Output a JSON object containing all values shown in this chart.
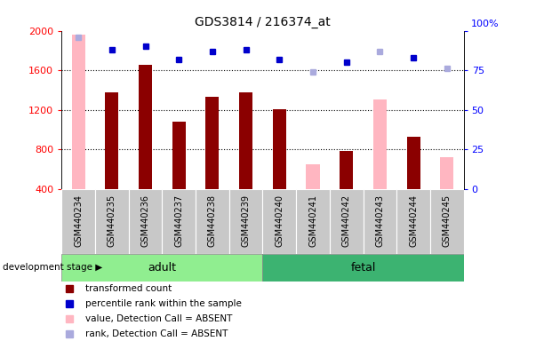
{
  "title": "GDS3814 / 216374_at",
  "categories": [
    "GSM440234",
    "GSM440235",
    "GSM440236",
    "GSM440237",
    "GSM440238",
    "GSM440239",
    "GSM440240",
    "GSM440241",
    "GSM440242",
    "GSM440243",
    "GSM440244",
    "GSM440245"
  ],
  "bar_values": [
    null,
    1380,
    1660,
    1080,
    1330,
    1380,
    1210,
    null,
    790,
    null,
    930,
    null
  ],
  "bar_absent_values": [
    1960,
    null,
    null,
    null,
    null,
    null,
    null,
    650,
    null,
    1310,
    null,
    720
  ],
  "rank_values": [
    null,
    88,
    90,
    82,
    87,
    88,
    82,
    null,
    80,
    null,
    83,
    null
  ],
  "rank_absent_values": [
    96,
    null,
    null,
    null,
    null,
    null,
    null,
    74,
    null,
    87,
    null,
    76
  ],
  "bar_color": "#8B0000",
  "bar_absent_color": "#FFB6C1",
  "rank_color": "#0000CC",
  "rank_absent_color": "#AAAADD",
  "ylim_left": [
    400,
    2000
  ],
  "ylim_right": [
    0,
    100
  ],
  "yticks_left": [
    400,
    800,
    1200,
    1600,
    2000
  ],
  "yticks_right": [
    0,
    25,
    50,
    75,
    100
  ],
  "grid_lines": [
    800,
    1200,
    1600
  ],
  "adult_count": 6,
  "fetal_count": 6,
  "adult_label": "adult",
  "fetal_label": "fetal",
  "dev_stage_label": "development stage",
  "legend_items": [
    {
      "label": "transformed count",
      "color": "#8B0000",
      "marker": "s"
    },
    {
      "label": "percentile rank within the sample",
      "color": "#0000CC",
      "marker": "s"
    },
    {
      "label": "value, Detection Call = ABSENT",
      "color": "#FFB6C1",
      "marker": "s"
    },
    {
      "label": "rank, Detection Call = ABSENT",
      "color": "#AAAADD",
      "marker": "s"
    }
  ],
  "bar_width": 0.4,
  "fig_width": 6.03,
  "fig_height": 3.84,
  "dpi": 100,
  "adult_color": "#90EE90",
  "fetal_color": "#3CB371",
  "tickbox_color": "#C8C8C8"
}
